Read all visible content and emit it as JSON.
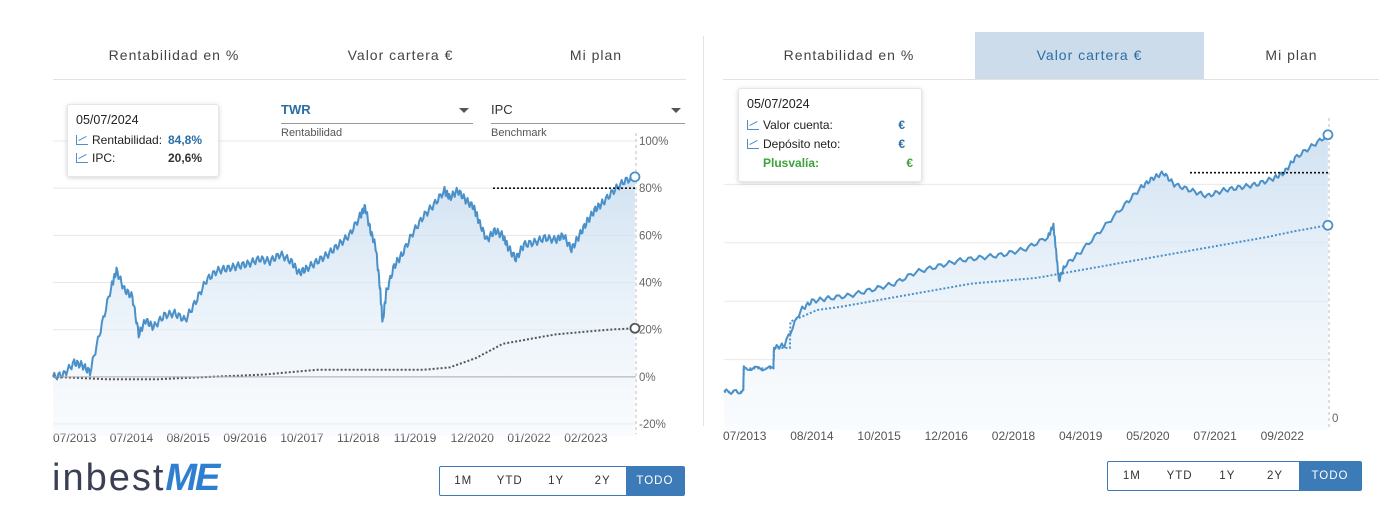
{
  "left": {
    "tabs": [
      {
        "label": "Rentabilidad en %",
        "active": true
      },
      {
        "label": "Valor cartera €",
        "active": false
      },
      {
        "label": "Mi plan",
        "active": false
      }
    ],
    "tooltip": {
      "date": "05/07/2024",
      "rows": [
        {
          "label": "Rentabilidad:",
          "value": "84,8%",
          "color": "#2a6ea6"
        },
        {
          "label": "IPC:",
          "value": "20,6%",
          "color": "#333333"
        }
      ]
    },
    "selects": [
      {
        "value": "TWR",
        "label": "Rentabilidad"
      },
      {
        "value": "IPC",
        "label": "Benchmark"
      }
    ],
    "range_buttons": [
      "1M",
      "YTD",
      "1Y",
      "2Y",
      "TODO"
    ],
    "active_range": "TODO",
    "logo": {
      "text": "inbest",
      "accent": "ME"
    }
  },
  "right": {
    "tabs": [
      {
        "label": "Rentabilidad en %",
        "active": false
      },
      {
        "label": "Valor cartera €",
        "active": true
      },
      {
        "label": "Mi plan",
        "active": false
      }
    ],
    "tooltip": {
      "date": "05/07/2024",
      "rows": [
        {
          "label": "Valor cuenta:",
          "value": "€",
          "color": "#2a6ea6"
        },
        {
          "label": "Depósito neto:",
          "value": "€",
          "color": "#2a6ea6"
        },
        {
          "label": "Plusvalía:",
          "value": "€",
          "color": "#3aa33a",
          "bold_label": true
        }
      ]
    },
    "range_buttons": [
      "1M",
      "YTD",
      "1Y",
      "2Y",
      "TODO"
    ],
    "active_range": "TODO"
  },
  "chart_data": [
    {
      "type": "area",
      "title": "",
      "xlabel": "",
      "ylabel": "",
      "x_ticks": [
        "07/2013",
        "07/2014",
        "08/2015",
        "09/2016",
        "10/2017",
        "11/2018",
        "11/2019",
        "12/2020",
        "01/2022",
        "02/2023"
      ],
      "y_ticks": [
        "100%",
        "80%",
        "60%",
        "40%",
        "20%",
        "0%",
        "-20%"
      ],
      "y_tick_values": [
        100,
        80,
        60,
        40,
        20,
        0,
        -20
      ],
      "ylim": [
        -20,
        100
      ],
      "xlim": [
        2013.5,
        2024.52
      ],
      "y_axis_side": "right",
      "grid": true,
      "reference_line_y": 80,
      "series": [
        {
          "key": "TWR",
          "style": "solid-area",
          "color": "#4a90c9",
          "points": [
            [
              2013.5,
              0
            ],
            [
              2013.7,
              1
            ],
            [
              2013.9,
              6
            ],
            [
              2014.05,
              5
            ],
            [
              2014.2,
              2
            ],
            [
              2014.4,
              20
            ],
            [
              2014.6,
              38
            ],
            [
              2014.7,
              45
            ],
            [
              2014.85,
              37
            ],
            [
              2015.0,
              34
            ],
            [
              2015.12,
              18
            ],
            [
              2015.25,
              24
            ],
            [
              2015.4,
              21
            ],
            [
              2015.6,
              26
            ],
            [
              2015.8,
              27
            ],
            [
              2016.0,
              24
            ],
            [
              2016.2,
              32
            ],
            [
              2016.4,
              41
            ],
            [
              2016.6,
              45
            ],
            [
              2016.8,
              46
            ],
            [
              2017.0,
              47
            ],
            [
              2017.2,
              48
            ],
            [
              2017.4,
              50
            ],
            [
              2017.6,
              49
            ],
            [
              2017.8,
              52
            ],
            [
              2018.0,
              49
            ],
            [
              2018.15,
              44
            ],
            [
              2018.3,
              46
            ],
            [
              2018.5,
              49
            ],
            [
              2018.7,
              52
            ],
            [
              2018.9,
              56
            ],
            [
              2019.1,
              60
            ],
            [
              2019.3,
              68
            ],
            [
              2019.4,
              72
            ],
            [
              2019.5,
              62
            ],
            [
              2019.6,
              55
            ],
            [
              2019.68,
              38
            ],
            [
              2019.73,
              23
            ],
            [
              2019.8,
              36
            ],
            [
              2019.95,
              47
            ],
            [
              2020.1,
              52
            ],
            [
              2020.3,
              61
            ],
            [
              2020.5,
              68
            ],
            [
              2020.7,
              73
            ],
            [
              2020.9,
              79
            ],
            [
              2021.0,
              76
            ],
            [
              2021.15,
              79
            ],
            [
              2021.3,
              75
            ],
            [
              2021.45,
              72
            ],
            [
              2021.55,
              66
            ],
            [
              2021.7,
              58
            ],
            [
              2021.85,
              62
            ],
            [
              2022.0,
              60
            ],
            [
              2022.1,
              55
            ],
            [
              2022.25,
              50
            ],
            [
              2022.4,
              56
            ],
            [
              2022.6,
              57
            ],
            [
              2022.8,
              59
            ],
            [
              2023.0,
              58
            ],
            [
              2023.15,
              60
            ],
            [
              2023.3,
              54
            ],
            [
              2023.45,
              60
            ],
            [
              2023.6,
              66
            ],
            [
              2023.75,
              71
            ],
            [
              2023.9,
              74
            ],
            [
              2024.1,
              79
            ],
            [
              2024.3,
              83
            ],
            [
              2024.5,
              84.8
            ]
          ]
        },
        {
          "key": "IPC",
          "style": "dotted",
          "color": "#555555",
          "points": [
            [
              2013.5,
              0
            ],
            [
              2014.5,
              -1
            ],
            [
              2015.5,
              -1
            ],
            [
              2016.5,
              0
            ],
            [
              2017.5,
              1
            ],
            [
              2018.5,
              3
            ],
            [
              2019.5,
              3
            ],
            [
              2020.5,
              3
            ],
            [
              2021.0,
              4
            ],
            [
              2021.5,
              8
            ],
            [
              2022.0,
              14
            ],
            [
              2022.5,
              16
            ],
            [
              2023.0,
              18
            ],
            [
              2023.5,
              19
            ],
            [
              2024.0,
              20
            ],
            [
              2024.5,
              20.6
            ]
          ]
        }
      ]
    },
    {
      "type": "area",
      "title": "",
      "xlabel": "",
      "ylabel": "",
      "x_ticks": [
        "07/2013",
        "08/2014",
        "10/2015",
        "12/2016",
        "02/2018",
        "04/2019",
        "05/2020",
        "07/2021",
        "09/2022"
      ],
      "y_ticks": [
        "0"
      ],
      "y_tick_values": [
        0
      ],
      "ylim": [
        0,
        100
      ],
      "xlim": [
        2013.5,
        2024.52
      ],
      "y_axis_side": "right",
      "grid": true,
      "reference_line_y": 84,
      "series": [
        {
          "key": "Valor cuenta",
          "style": "solid-area",
          "color": "#4a90c9",
          "points": [
            [
              2013.5,
              9
            ],
            [
              2013.85,
              9
            ],
            [
              2013.86,
              17
            ],
            [
              2014.4,
              17
            ],
            [
              2014.41,
              24
            ],
            [
              2014.6,
              25
            ],
            [
              2014.9,
              37
            ],
            [
              2015.1,
              40
            ],
            [
              2015.4,
              41
            ],
            [
              2015.8,
              42
            ],
            [
              2016.2,
              44
            ],
            [
              2016.6,
              46
            ],
            [
              2017.0,
              50
            ],
            [
              2017.4,
              52
            ],
            [
              2017.8,
              54
            ],
            [
              2018.2,
              55
            ],
            [
              2018.6,
              56
            ],
            [
              2019.0,
              58
            ],
            [
              2019.4,
              62
            ],
            [
              2019.5,
              66
            ],
            [
              2019.55,
              57
            ],
            [
              2019.6,
              47
            ],
            [
              2019.7,
              52
            ],
            [
              2020.0,
              57
            ],
            [
              2020.4,
              65
            ],
            [
              2020.8,
              73
            ],
            [
              2021.1,
              79
            ],
            [
              2021.3,
              82
            ],
            [
              2021.5,
              84
            ],
            [
              2021.7,
              80
            ],
            [
              2022.0,
              78
            ],
            [
              2022.3,
              76
            ],
            [
              2022.6,
              78
            ],
            [
              2022.9,
              79
            ],
            [
              2023.2,
              80
            ],
            [
              2023.5,
              82
            ],
            [
              2023.7,
              84
            ],
            [
              2023.9,
              89
            ],
            [
              2024.2,
              93
            ],
            [
              2024.5,
              97
            ]
          ]
        },
        {
          "key": "Depósito neto",
          "style": "dotted",
          "color": "#4a90c9",
          "points": [
            [
              2013.5,
              9
            ],
            [
              2013.85,
              9
            ],
            [
              2013.86,
              17
            ],
            [
              2014.4,
              17
            ],
            [
              2014.41,
              24
            ],
            [
              2014.7,
              24
            ],
            [
              2014.71,
              33
            ],
            [
              2015.2,
              37
            ],
            [
              2015.6,
              38
            ],
            [
              2016.2,
              40
            ],
            [
              2016.8,
              42
            ],
            [
              2017.4,
              44
            ],
            [
              2018.0,
              46
            ],
            [
              2018.6,
              47
            ],
            [
              2019.2,
              48
            ],
            [
              2019.8,
              50
            ],
            [
              2020.4,
              52
            ],
            [
              2021.0,
              54
            ],
            [
              2021.6,
              56
            ],
            [
              2022.2,
              58
            ],
            [
              2022.8,
              60
            ],
            [
              2023.4,
              62
            ],
            [
              2023.9,
              64
            ],
            [
              2024.5,
              66
            ]
          ]
        }
      ]
    }
  ]
}
